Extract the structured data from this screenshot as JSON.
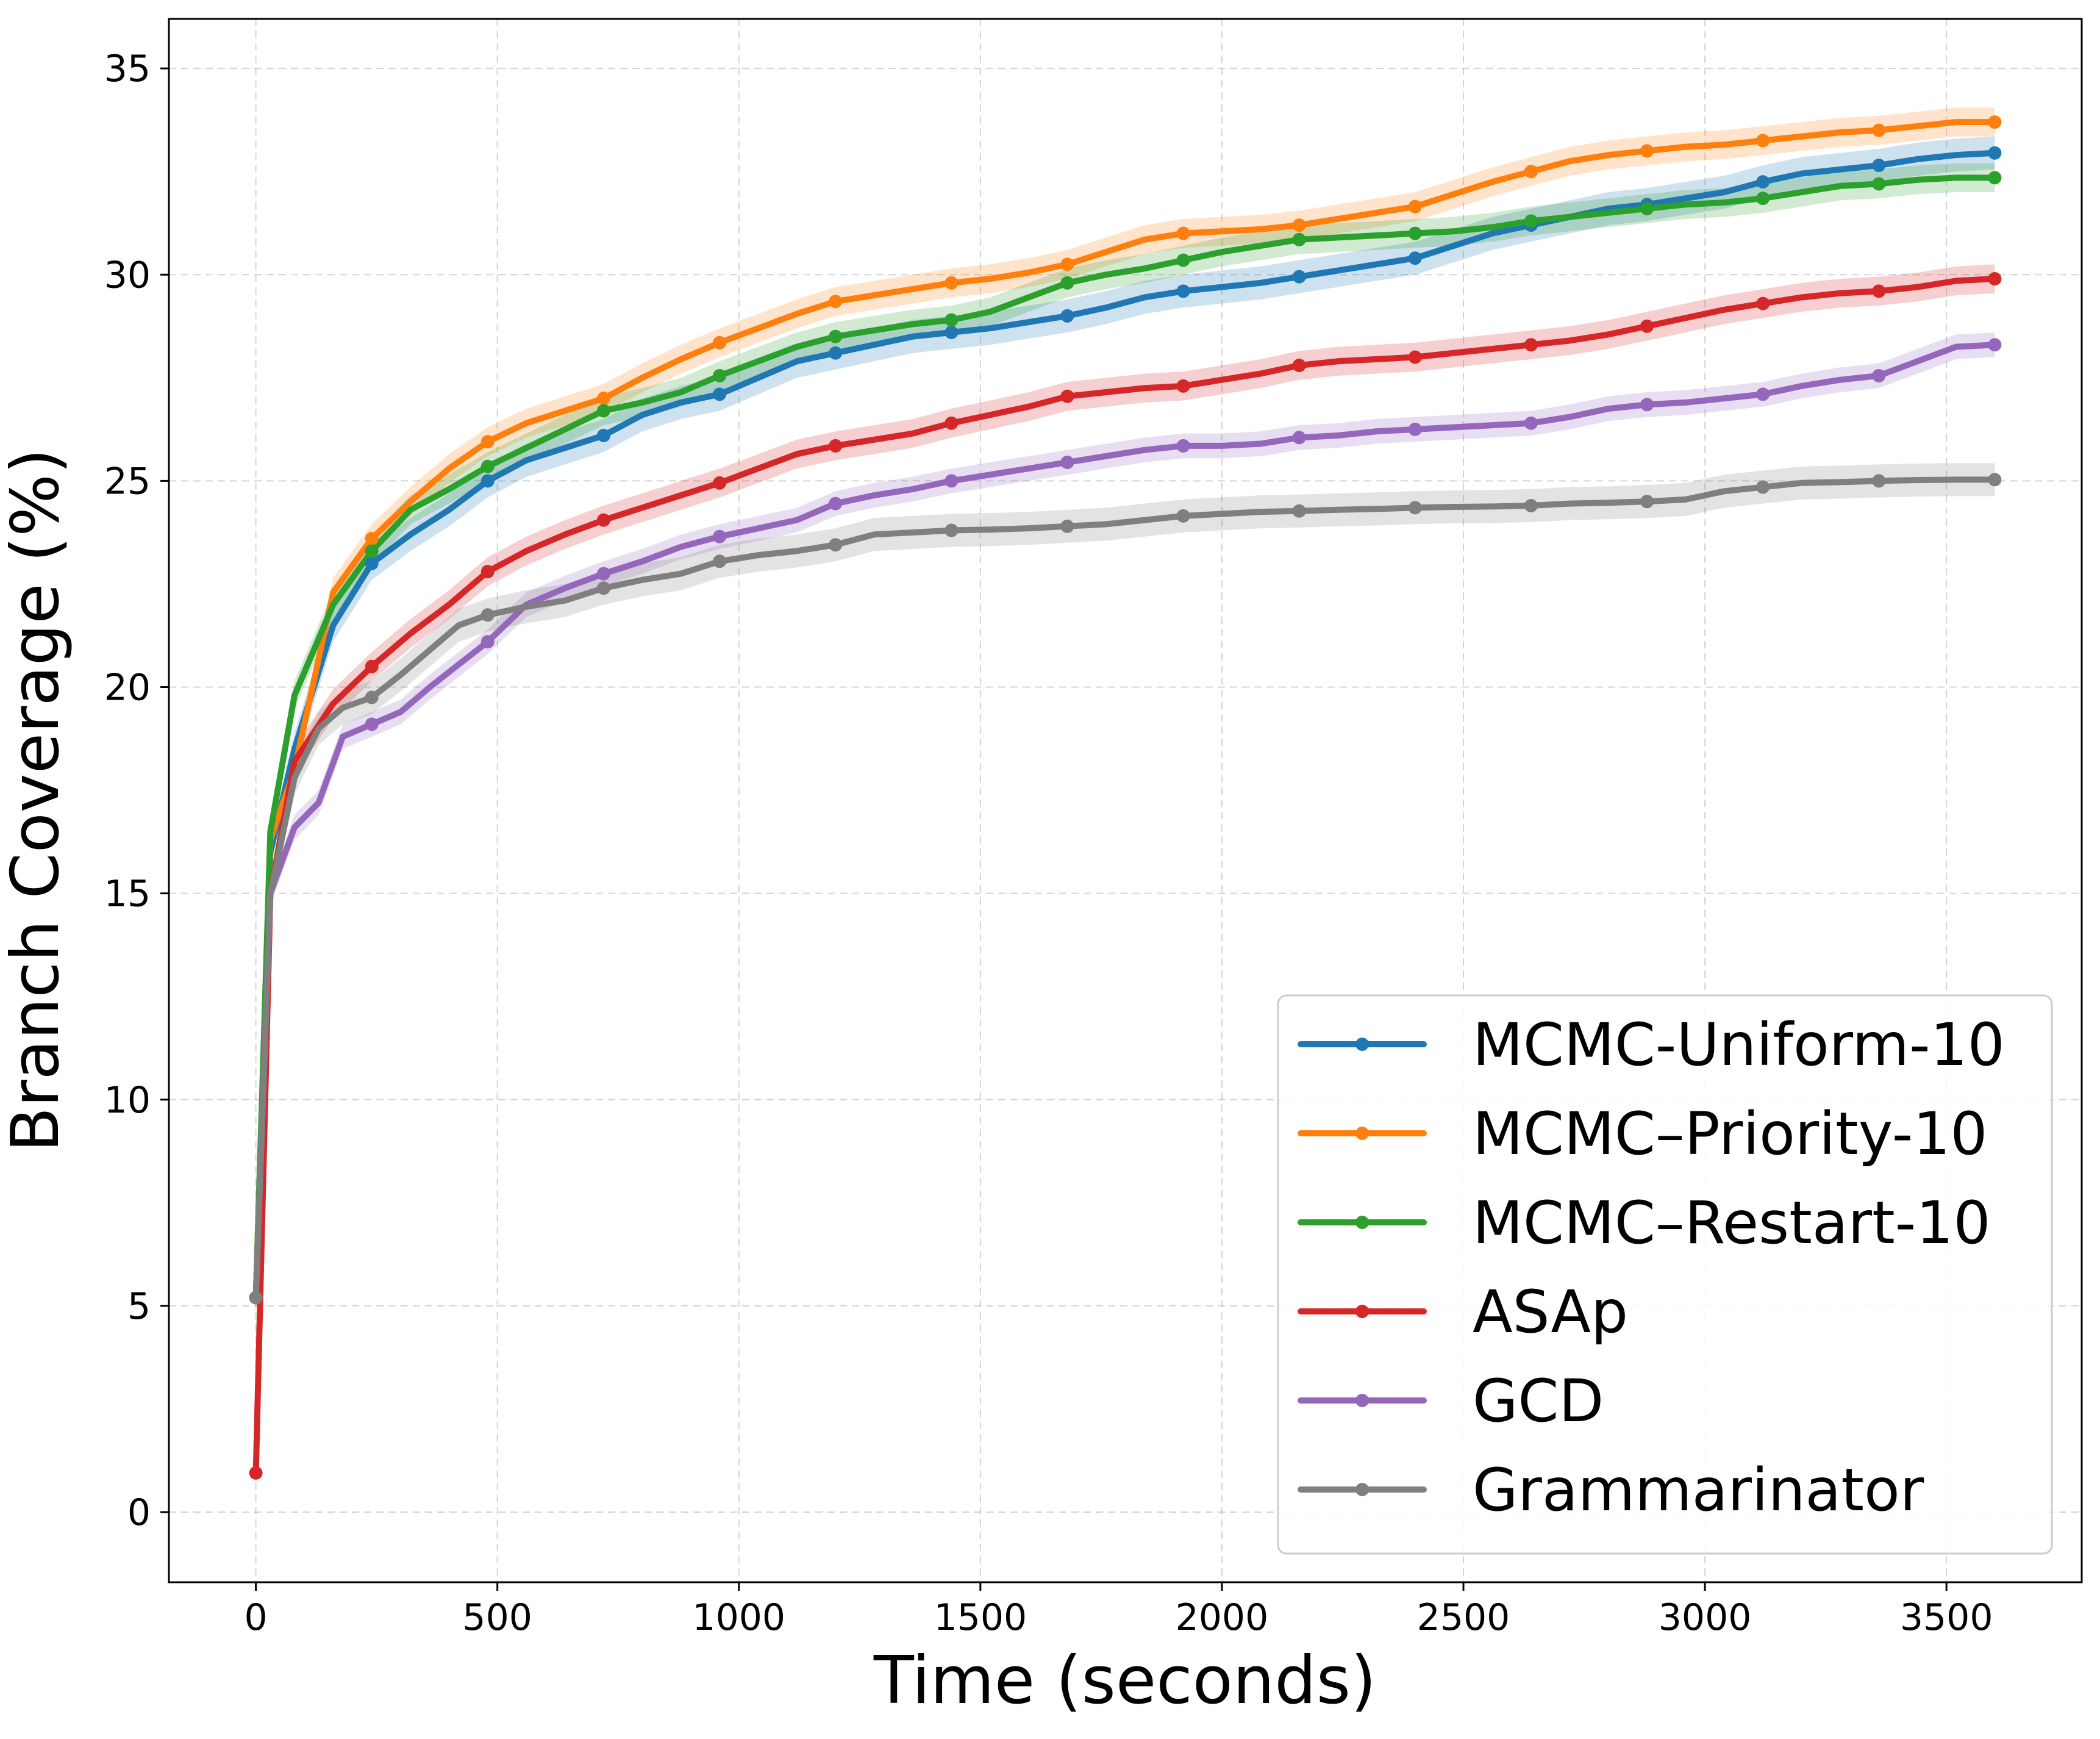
{
  "chart_data": {
    "type": "line",
    "title": "",
    "xlabel": "Time (seconds)",
    "ylabel": "Branch Coverage (%)",
    "xlim": [
      -180,
      3780
    ],
    "ylim": [
      -1.7,
      36.2
    ],
    "xticks": [
      0,
      500,
      1000,
      1500,
      2000,
      2500,
      3000,
      3500
    ],
    "yticks": [
      0,
      5,
      10,
      15,
      20,
      25,
      30,
      35
    ],
    "grid": true,
    "legend_position": "lower-right",
    "series": [
      {
        "name": "MCMC-Uniform-10",
        "color": "#1f77b4",
        "x": [
          0,
          30,
          80,
          160,
          240,
          320,
          400,
          480,
          560,
          640,
          720,
          800,
          880,
          960,
          1040,
          1120,
          1200,
          1280,
          1360,
          1440,
          1520,
          1600,
          1680,
          1760,
          1840,
          1920,
          2000,
          2080,
          2160,
          2240,
          2320,
          2400,
          2480,
          2560,
          2640,
          2720,
          2800,
          2880,
          2960,
          3040,
          3120,
          3200,
          3280,
          3360,
          3440,
          3520,
          3600
        ],
        "y": [
          5.2,
          16.0,
          18.5,
          21.5,
          23.0,
          23.7,
          24.3,
          25.0,
          25.5,
          25.8,
          26.1,
          26.6,
          26.9,
          27.1,
          27.5,
          27.9,
          28.1,
          28.3,
          28.5,
          28.6,
          28.7,
          28.85,
          29.0,
          29.2,
          29.45,
          29.6,
          29.7,
          29.8,
          29.95,
          30.1,
          30.25,
          30.4,
          30.7,
          31.0,
          31.2,
          31.4,
          31.6,
          31.7,
          31.85,
          32.0,
          32.25,
          32.45,
          32.55,
          32.65,
          32.8,
          32.9,
          32.95
        ],
        "band": 0.4,
        "markers_x": [
          0,
          240,
          480,
          720,
          960,
          1200,
          1440,
          1680,
          1920,
          2160,
          2400,
          2640,
          2880,
          3120,
          3360,
          3600
        ]
      },
      {
        "name": "MCMC–Priority-10",
        "color": "#ff7f0e",
        "x": [
          0,
          30,
          80,
          160,
          240,
          320,
          400,
          480,
          560,
          640,
          720,
          800,
          880,
          960,
          1040,
          1120,
          1200,
          1280,
          1360,
          1440,
          1520,
          1600,
          1680,
          1760,
          1840,
          1920,
          2000,
          2080,
          2160,
          2240,
          2320,
          2400,
          2480,
          2560,
          2640,
          2720,
          2800,
          2880,
          2960,
          3040,
          3120,
          3200,
          3280,
          3360,
          3440,
          3520,
          3600
        ],
        "y": [
          5.2,
          16.3,
          18.0,
          22.3,
          23.6,
          24.5,
          25.3,
          25.95,
          26.4,
          26.7,
          27.0,
          27.5,
          27.95,
          28.35,
          28.7,
          29.05,
          29.35,
          29.5,
          29.65,
          29.8,
          29.9,
          30.05,
          30.25,
          30.55,
          30.85,
          31.0,
          31.05,
          31.1,
          31.2,
          31.35,
          31.5,
          31.65,
          31.95,
          32.25,
          32.5,
          32.75,
          32.9,
          33.0,
          33.1,
          33.15,
          33.25,
          33.35,
          33.45,
          33.5,
          33.6,
          33.7,
          33.7
        ],
        "band": 0.35,
        "markers_x": [
          0,
          240,
          480,
          720,
          960,
          1200,
          1440,
          1680,
          1920,
          2160,
          2400,
          2640,
          2880,
          3120,
          3360,
          3600
        ]
      },
      {
        "name": "MCMC–Restart-10",
        "color": "#2ca02c",
        "x": [
          0,
          30,
          80,
          160,
          240,
          320,
          400,
          480,
          560,
          640,
          720,
          800,
          880,
          960,
          1040,
          1120,
          1200,
          1280,
          1360,
          1440,
          1520,
          1600,
          1680,
          1760,
          1840,
          1920,
          2000,
          2080,
          2160,
          2240,
          2320,
          2400,
          2480,
          2560,
          2640,
          2720,
          2800,
          2880,
          2960,
          3040,
          3120,
          3200,
          3280,
          3360,
          3440,
          3520,
          3600
        ],
        "y": [
          5.2,
          16.5,
          19.8,
          22.0,
          23.3,
          24.3,
          24.8,
          25.35,
          25.8,
          26.25,
          26.7,
          26.9,
          27.15,
          27.55,
          27.9,
          28.25,
          28.5,
          28.65,
          28.8,
          28.9,
          29.1,
          29.45,
          29.8,
          30.0,
          30.15,
          30.35,
          30.55,
          30.7,
          30.85,
          30.9,
          30.95,
          31.0,
          31.05,
          31.15,
          31.3,
          31.4,
          31.5,
          31.6,
          31.7,
          31.75,
          31.85,
          32.0,
          32.15,
          32.2,
          32.3,
          32.35,
          32.35
        ],
        "band": 0.35,
        "markers_x": [
          0,
          240,
          480,
          720,
          960,
          1200,
          1440,
          1680,
          1920,
          2160,
          2400,
          2640,
          2880,
          3120,
          3360,
          3600
        ]
      },
      {
        "name": "ASAp",
        "color": "#d62728",
        "x": [
          0,
          30,
          80,
          160,
          240,
          320,
          400,
          480,
          560,
          640,
          720,
          800,
          880,
          960,
          1040,
          1120,
          1200,
          1280,
          1360,
          1440,
          1520,
          1600,
          1680,
          1760,
          1840,
          1920,
          2000,
          2080,
          2160,
          2240,
          2320,
          2400,
          2480,
          2560,
          2640,
          2720,
          2800,
          2880,
          2960,
          3040,
          3120,
          3200,
          3280,
          3360,
          3440,
          3520,
          3600
        ],
        "y": [
          0.95,
          15.0,
          18.2,
          19.6,
          20.5,
          21.3,
          22.0,
          22.8,
          23.3,
          23.7,
          24.05,
          24.35,
          24.65,
          24.95,
          25.3,
          25.65,
          25.85,
          26.0,
          26.15,
          26.4,
          26.6,
          26.8,
          27.05,
          27.15,
          27.25,
          27.3,
          27.45,
          27.6,
          27.8,
          27.9,
          27.95,
          28.0,
          28.1,
          28.2,
          28.3,
          28.4,
          28.55,
          28.75,
          28.95,
          29.15,
          29.3,
          29.45,
          29.55,
          29.6,
          29.7,
          29.85,
          29.9
        ],
        "band": 0.35,
        "markers_x": [
          0,
          240,
          480,
          720,
          960,
          1200,
          1440,
          1680,
          1920,
          2160,
          2400,
          2640,
          2880,
          3120,
          3360,
          3600
        ]
      },
      {
        "name": "GCD",
        "color": "#9467bd",
        "x": [
          0,
          30,
          80,
          130,
          180,
          240,
          300,
          360,
          420,
          480,
          560,
          640,
          720,
          800,
          880,
          960,
          1040,
          1120,
          1200,
          1280,
          1360,
          1440,
          1520,
          1600,
          1680,
          1760,
          1840,
          1920,
          2000,
          2080,
          2160,
          2240,
          2320,
          2400,
          2480,
          2560,
          2640,
          2720,
          2800,
          2880,
          2960,
          3040,
          3120,
          3200,
          3280,
          3360,
          3440,
          3520,
          3600
        ],
        "y": [
          5.2,
          15.0,
          16.6,
          17.2,
          18.8,
          19.1,
          19.4,
          20.0,
          20.55,
          21.1,
          22.0,
          22.4,
          22.75,
          23.05,
          23.4,
          23.65,
          23.85,
          24.05,
          24.45,
          24.65,
          24.8,
          25.0,
          25.15,
          25.3,
          25.45,
          25.6,
          25.75,
          25.85,
          25.85,
          25.9,
          26.05,
          26.1,
          26.2,
          26.25,
          26.3,
          26.35,
          26.4,
          26.55,
          26.75,
          26.85,
          26.9,
          27.0,
          27.1,
          27.3,
          27.45,
          27.55,
          27.9,
          28.25,
          28.3
        ],
        "band": 0.3,
        "markers_x": [
          0,
          240,
          480,
          720,
          960,
          1200,
          1440,
          1680,
          1920,
          2160,
          2400,
          2640,
          2880,
          3120,
          3360,
          3600
        ]
      },
      {
        "name": "Grammarinator",
        "color": "#7f7f7f",
        "x": [
          0,
          30,
          80,
          130,
          180,
          240,
          300,
          360,
          420,
          480,
          560,
          640,
          720,
          800,
          880,
          960,
          1040,
          1120,
          1200,
          1280,
          1360,
          1440,
          1520,
          1600,
          1680,
          1760,
          1840,
          1920,
          2000,
          2080,
          2160,
          2240,
          2320,
          2400,
          2480,
          2560,
          2640,
          2720,
          2800,
          2880,
          2960,
          3040,
          3120,
          3200,
          3280,
          3360,
          3440,
          3520,
          3600
        ],
        "y": [
          5.2,
          15.0,
          17.8,
          19.0,
          19.5,
          19.75,
          20.3,
          20.9,
          21.5,
          21.75,
          21.95,
          22.1,
          22.4,
          22.6,
          22.75,
          23.05,
          23.2,
          23.3,
          23.45,
          23.7,
          23.75,
          23.8,
          23.82,
          23.85,
          23.9,
          23.95,
          24.05,
          24.15,
          24.2,
          24.25,
          24.27,
          24.3,
          24.32,
          24.35,
          24.37,
          24.38,
          24.4,
          24.45,
          24.47,
          24.5,
          24.55,
          24.75,
          24.85,
          24.95,
          24.97,
          25.0,
          25.02,
          25.03,
          25.03
        ],
        "band": 0.4,
        "markers_x": [
          0,
          240,
          480,
          720,
          960,
          1200,
          1440,
          1680,
          1920,
          2160,
          2400,
          2640,
          2880,
          3120,
          3360,
          3600
        ]
      }
    ]
  }
}
